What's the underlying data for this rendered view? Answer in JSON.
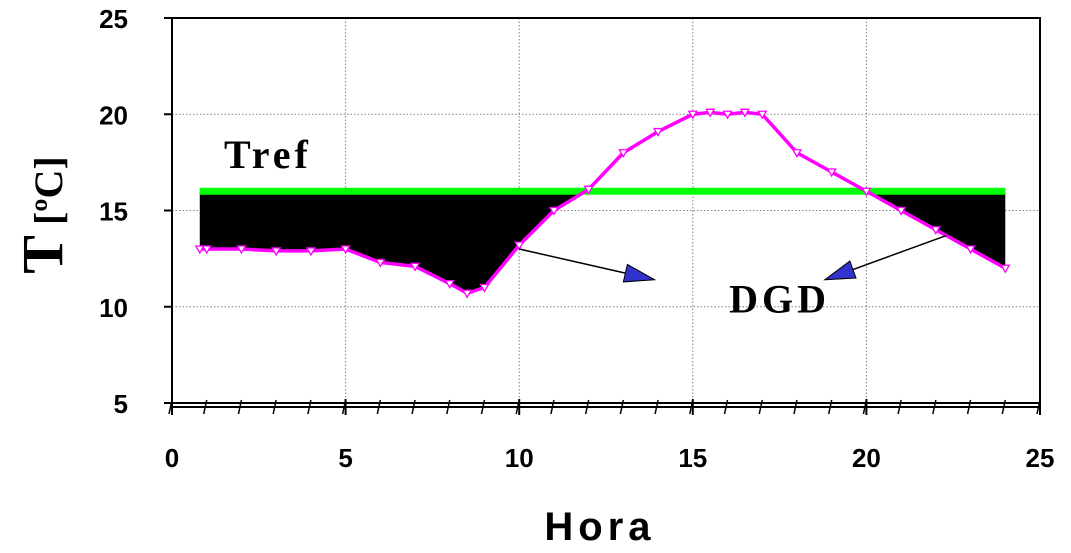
{
  "chart_data": {
    "type": "line",
    "xlabel": "Hora",
    "ylabel": {
      "main": "T",
      "unit": "[ºC]"
    },
    "xlim": [
      0,
      25
    ],
    "ylim": [
      5,
      25
    ],
    "xticks": [
      "0",
      "5",
      "10",
      "15",
      "20",
      "25"
    ],
    "yticks": [
      "5",
      "10",
      "15",
      "20",
      "25"
    ],
    "grid": true,
    "tref": {
      "label": "Tref",
      "value": 16,
      "x_range": [
        0.8,
        24
      ],
      "color": "#00ff00"
    },
    "series": [
      {
        "color": "#ff00ff",
        "x": [
          0.8,
          1,
          2,
          3,
          4,
          5,
          6,
          7,
          8,
          8.5,
          9,
          10,
          11,
          12,
          13,
          14,
          15,
          15.5,
          16,
          16.5,
          17,
          18,
          19,
          20,
          21,
          22,
          23,
          24
        ],
        "y": [
          13,
          13,
          13,
          12.9,
          12.9,
          13,
          12.3,
          12.1,
          11.2,
          10.7,
          11,
          13.2,
          15,
          16.1,
          18,
          19.1,
          20,
          20.1,
          20,
          20.1,
          20,
          18,
          17,
          16,
          15,
          14,
          13,
          12
        ]
      }
    ],
    "shaded_region": {
      "color": "#000000",
      "description_label": "DGD"
    },
    "annotations": [
      {
        "text": "DGD",
        "x": 17.5,
        "y": 9.7
      },
      {
        "arrow_from": [
          10,
          13
        ],
        "arrow_to": [
          13.9,
          11.4
        ]
      },
      {
        "arrow_from": [
          22.3,
          13.7
        ],
        "arrow_to": [
          18.8,
          11.4
        ]
      }
    ]
  }
}
